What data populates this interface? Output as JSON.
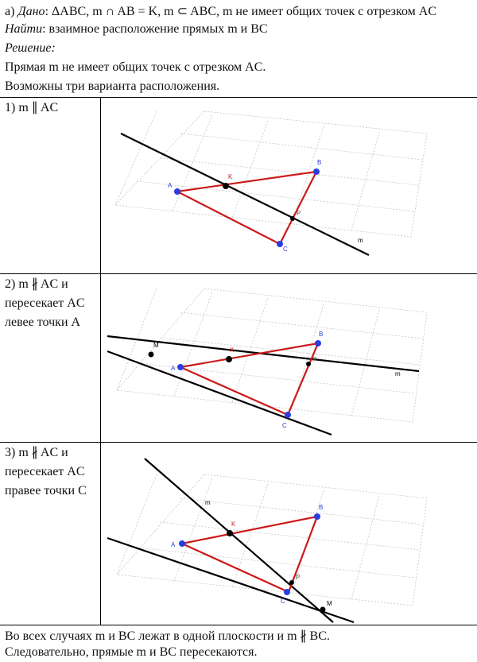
{
  "header": {
    "given_prefix": "а) ",
    "given_label": "Дано",
    "given_text": ": ΔABC,  m ∩ AB = K, m ⊂ ABC, m не имеет общих точек с отрезком AC",
    "find_label": "Найти",
    "find_text": ": взаимное расположение прямых m и BC",
    "solution_label": "Решение:",
    "line1": "Прямая m не имеет общих точек с отрезком AC.",
    "line2": "Возможны три варианта расположения."
  },
  "cases": [
    {
      "lines": [
        "1) m ∥ AC"
      ]
    },
    {
      "lines": [
        "2) m ∦ AC и",
        "пересекает AC",
        "левее точки A"
      ]
    },
    {
      "lines": [
        "3) m ∦ AC и",
        "пересекает AC",
        "правее точки C"
      ]
    }
  ],
  "figure_labels": {
    "A": "A",
    "B": "B",
    "C": "C",
    "K": "K",
    "P": "P",
    "M": "M",
    "m": "m"
  },
  "footer": {
    "line1": "Во всех случаях m и BC лежат в одной плоскости и m ∦ BC.",
    "line2": "Следовательно, прямые m и BC пересекаются."
  },
  "colors": {
    "triangle": "#cc1a1a",
    "point": "#2a3de0",
    "line": "#000000",
    "grid": "#bdbdbd"
  }
}
